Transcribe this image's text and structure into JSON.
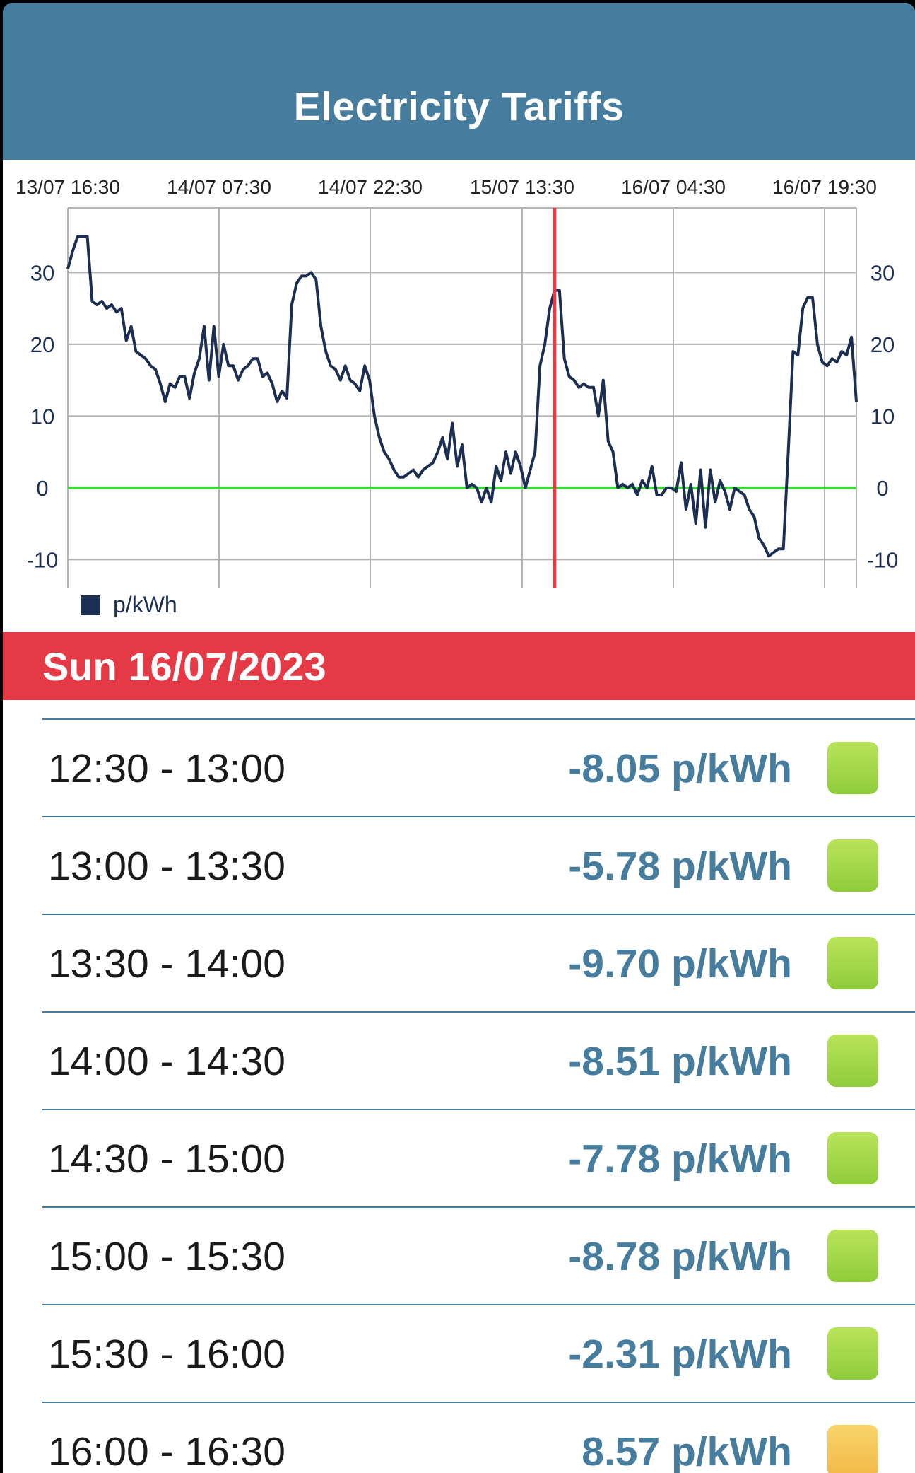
{
  "header": {
    "title": "Electricity Tariffs"
  },
  "date_banner": {
    "label": "Sun 16/07/2023"
  },
  "chart_data": {
    "type": "line",
    "x_tick_labels": [
      "13/07 16:30",
      "14/07 07:30",
      "14/07 22:30",
      "15/07 13:30",
      "16/07 04:30",
      "16/07 19:30"
    ],
    "y_ticks": [
      30,
      20,
      10,
      0,
      -10
    ],
    "ylim": [
      -14,
      39
    ],
    "legend": {
      "label": "p/kWh",
      "placement": "bottom-left"
    },
    "series": [
      {
        "name": "p/kWh",
        "color": "#1c2f52",
        "values": [
          30.5,
          33,
          35,
          35,
          35,
          26,
          25.5,
          26,
          25,
          25.5,
          24.5,
          25,
          20.5,
          22.5,
          19,
          18.5,
          18,
          17,
          16.5,
          14.5,
          12,
          14.5,
          14,
          15.5,
          15.5,
          12.5,
          16,
          18,
          22.5,
          15,
          22.5,
          15.5,
          20,
          17,
          17,
          15,
          16.5,
          17,
          18,
          18,
          15.5,
          16,
          14.5,
          12,
          13.5,
          12.5,
          25.5,
          28.5,
          29.5,
          29.5,
          30,
          29,
          22.5,
          19,
          17,
          16.5,
          15,
          17,
          15,
          14.5,
          13.5,
          17,
          15,
          10,
          7,
          5,
          4,
          2.5,
          1.5,
          1.5,
          2,
          2.5,
          1.5,
          2.5,
          3,
          3.5,
          5,
          7,
          4,
          9,
          3,
          6,
          0,
          0.5,
          0,
          -2,
          0,
          -2,
          3,
          1,
          5,
          2,
          5,
          3,
          0,
          2.5,
          5,
          17,
          20,
          25,
          27.5,
          27.5,
          18,
          15.5,
          15,
          14,
          14.5,
          14,
          14,
          10,
          15,
          6.5,
          5,
          0,
          0.5,
          0,
          0.5,
          -1,
          1,
          0,
          3,
          -1,
          -1,
          0,
          0,
          -0.5,
          3.5,
          -3,
          0.5,
          -5,
          2.5,
          -5.5,
          2.5,
          -2,
          1,
          -0.5,
          -3,
          0,
          -0.5,
          -1,
          -3,
          -4,
          -7,
          -8,
          -9.5,
          -9,
          -8.5,
          -8.5,
          5,
          19,
          18.5,
          25,
          26.5,
          26.5,
          20,
          17.5,
          17,
          18,
          17.5,
          19,
          18.5,
          21,
          12
        ]
      }
    ],
    "current_time_marker": {
      "color": "#e63946",
      "position_value_index": 100
    },
    "zero_line_color": "#3fd43a",
    "grid": true
  },
  "tariffs": [
    {
      "time": "12:30 - 13:00",
      "price": "-8.05 p/kWh",
      "level": "green"
    },
    {
      "time": "13:00 - 13:30",
      "price": "-5.78 p/kWh",
      "level": "green"
    },
    {
      "time": "13:30 - 14:00",
      "price": "-9.70 p/kWh",
      "level": "green"
    },
    {
      "time": "14:00 - 14:30",
      "price": "-8.51 p/kWh",
      "level": "green"
    },
    {
      "time": "14:30 - 15:00",
      "price": "-7.78 p/kWh",
      "level": "green"
    },
    {
      "time": "15:00 - 15:30",
      "price": "-8.78 p/kWh",
      "level": "green"
    },
    {
      "time": "15:30 - 16:00",
      "price": "-2.31 p/kWh",
      "level": "green"
    },
    {
      "time": "16:00 - 16:30",
      "price": "8.57 p/kWh",
      "level": "amber"
    }
  ]
}
